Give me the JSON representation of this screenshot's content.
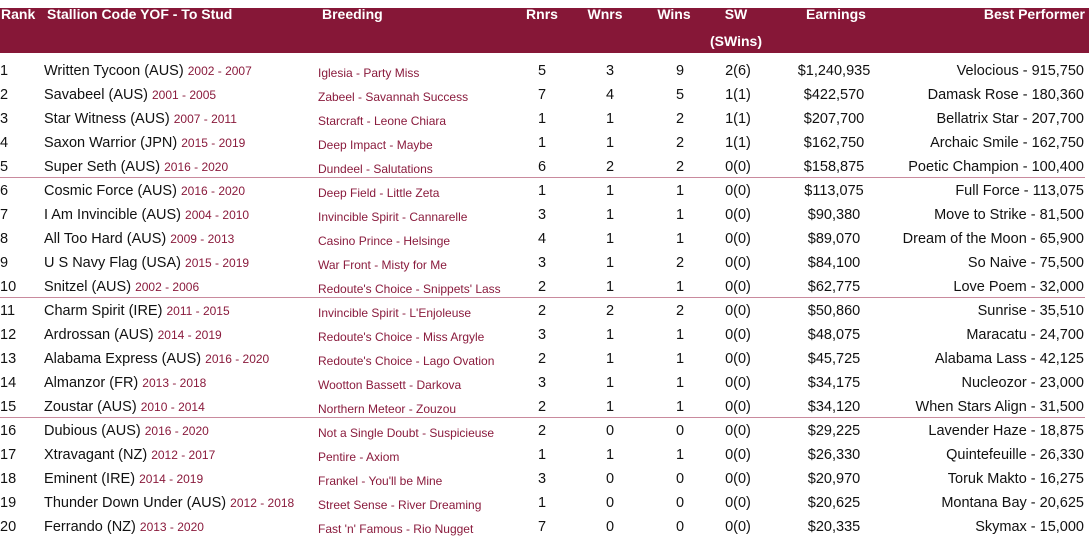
{
  "accent_color": "#861737",
  "headers": {
    "rank": "Rank",
    "stallion": "Stallion Code YOF - To Stud",
    "breeding": "Breeding",
    "rnrs": "Rnrs",
    "wnrs": "Wnrs",
    "wins": "Wins",
    "sw": "SW",
    "sw2": "(SWins)",
    "earnings": "Earnings",
    "best": "Best Performer"
  },
  "rows": [
    {
      "rank": "1",
      "name": "Written Tycoon (AUS)",
      "years": "2002 - 2007",
      "breeding": "Iglesia - Party Miss",
      "rnrs": "5",
      "wnrs": "3",
      "wins": "9",
      "sw": "2(6)",
      "earnings": "$1,240,935",
      "best": "Velocious - 915,750"
    },
    {
      "rank": "2",
      "name": "Savabeel (AUS)",
      "years": "2001 - 2005",
      "breeding": "Zabeel - Savannah Success",
      "rnrs": "7",
      "wnrs": "4",
      "wins": "5",
      "sw": "1(1)",
      "earnings": "$422,570",
      "best": "Damask Rose - 180,360"
    },
    {
      "rank": "3",
      "name": "Star Witness (AUS)",
      "years": "2007 - 2011",
      "breeding": "Starcraft - Leone Chiara",
      "rnrs": "1",
      "wnrs": "1",
      "wins": "2",
      "sw": "1(1)",
      "earnings": "$207,700",
      "best": "Bellatrix Star - 207,700"
    },
    {
      "rank": "4",
      "name": "Saxon Warrior (JPN)",
      "years": "2015 - 2019",
      "breeding": "Deep Impact - Maybe",
      "rnrs": "1",
      "wnrs": "1",
      "wins": "2",
      "sw": "1(1)",
      "earnings": "$162,750",
      "best": "Archaic Smile - 162,750"
    },
    {
      "rank": "5",
      "name": "Super Seth (AUS)",
      "years": "2016 - 2020",
      "breeding": "Dundeel - Salutations",
      "rnrs": "6",
      "wnrs": "2",
      "wins": "2",
      "sw": "0(0)",
      "earnings": "$158,875",
      "best": "Poetic Champion - 100,400"
    },
    {
      "rank": "6",
      "name": "Cosmic Force (AUS)",
      "years": "2016 - 2020",
      "breeding": "Deep Field - Little Zeta",
      "rnrs": "1",
      "wnrs": "1",
      "wins": "1",
      "sw": "0(0)",
      "earnings": "$113,075",
      "best": "Full Force - 113,075"
    },
    {
      "rank": "7",
      "name": "I Am Invincible (AUS)",
      "years": "2004 - 2010",
      "breeding": "Invincible Spirit - Cannarelle",
      "rnrs": "3",
      "wnrs": "1",
      "wins": "1",
      "sw": "0(0)",
      "earnings": "$90,380",
      "best": "Move to Strike - 81,500"
    },
    {
      "rank": "8",
      "name": "All Too Hard (AUS)",
      "years": "2009 - 2013",
      "breeding": "Casino Prince - Helsinge",
      "rnrs": "4",
      "wnrs": "1",
      "wins": "1",
      "sw": "0(0)",
      "earnings": "$89,070",
      "best": "Dream of the Moon - 65,900"
    },
    {
      "rank": "9",
      "name": "U S Navy Flag (USA)",
      "years": "2015 - 2019",
      "breeding": "War Front - Misty for Me",
      "rnrs": "3",
      "wnrs": "1",
      "wins": "2",
      "sw": "0(0)",
      "earnings": "$84,100",
      "best": "So Naive - 75,500"
    },
    {
      "rank": "10",
      "name": "Snitzel (AUS)",
      "years": "2002 - 2006",
      "breeding": "Redoute's Choice - Snippets' Lass",
      "rnrs": "2",
      "wnrs": "1",
      "wins": "1",
      "sw": "0(0)",
      "earnings": "$62,775",
      "best": "Love Poem - 32,000"
    },
    {
      "rank": "11",
      "name": "Charm Spirit (IRE)",
      "years": "2011 - 2015",
      "breeding": "Invincible Spirit - L'Enjoleuse",
      "rnrs": "2",
      "wnrs": "2",
      "wins": "2",
      "sw": "0(0)",
      "earnings": "$50,860",
      "best": "Sunrise - 35,510"
    },
    {
      "rank": "12",
      "name": "Ardrossan (AUS)",
      "years": "2014 - 2019",
      "breeding": "Redoute's Choice - Miss Argyle",
      "rnrs": "3",
      "wnrs": "1",
      "wins": "1",
      "sw": "0(0)",
      "earnings": "$48,075",
      "best": "Maracatu - 24,700"
    },
    {
      "rank": "13",
      "name": "Alabama Express (AUS)",
      "years": "2016 - 2020",
      "breeding": "Redoute's Choice - Lago Ovation",
      "rnrs": "2",
      "wnrs": "1",
      "wins": "1",
      "sw": "0(0)",
      "earnings": "$45,725",
      "best": "Alabama Lass - 42,125"
    },
    {
      "rank": "14",
      "name": "Almanzor (FR)",
      "years": "2013 - 2018",
      "breeding": "Wootton Bassett - Darkova",
      "rnrs": "3",
      "wnrs": "1",
      "wins": "1",
      "sw": "0(0)",
      "earnings": "$34,175",
      "best": "Nucleozor - 23,000"
    },
    {
      "rank": "15",
      "name": "Zoustar (AUS)",
      "years": "2010 - 2014",
      "breeding": "Northern Meteor - Zouzou",
      "rnrs": "2",
      "wnrs": "1",
      "wins": "1",
      "sw": "0(0)",
      "earnings": "$34,120",
      "best": "When Stars Align - 31,500"
    },
    {
      "rank": "16",
      "name": "Dubious (AUS)",
      "years": "2016 - 2020",
      "breeding": "Not a Single Doubt - Suspicieuse",
      "rnrs": "2",
      "wnrs": "0",
      "wins": "0",
      "sw": "0(0)",
      "earnings": "$29,225",
      "best": "Lavender Haze - 18,875"
    },
    {
      "rank": "17",
      "name": "Xtravagant (NZ)",
      "years": "2012 - 2017",
      "breeding": "Pentire - Axiom",
      "rnrs": "1",
      "wnrs": "1",
      "wins": "1",
      "sw": "0(0)",
      "earnings": "$26,330",
      "best": "Quintefeuille - 26,330"
    },
    {
      "rank": "18",
      "name": "Eminent (IRE)",
      "years": "2014 - 2019",
      "breeding": "Frankel - You'll be Mine",
      "rnrs": "3",
      "wnrs": "0",
      "wins": "0",
      "sw": "0(0)",
      "earnings": "$20,970",
      "best": "Toruk Makto - 16,275"
    },
    {
      "rank": "19",
      "name": "Thunder Down Under (AUS)",
      "years": "2012 - 2018",
      "breeding": "Street Sense - River Dreaming",
      "rnrs": "1",
      "wnrs": "0",
      "wins": "0",
      "sw": "0(0)",
      "earnings": "$20,625",
      "best": "Montana Bay - 20,625"
    },
    {
      "rank": "20",
      "name": "Ferrando (NZ)",
      "years": "2013 - 2020",
      "breeding": "Fast 'n' Famous - Rio Nugget",
      "rnrs": "7",
      "wnrs": "0",
      "wins": "0",
      "sw": "0(0)",
      "earnings": "$20,335",
      "best": "Skymax - 15,000"
    }
  ]
}
